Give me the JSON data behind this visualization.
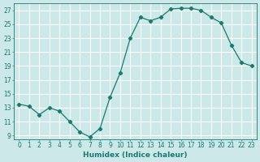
{
  "x": [
    0,
    1,
    2,
    3,
    4,
    5,
    6,
    7,
    8,
    9,
    10,
    11,
    12,
    13,
    14,
    15,
    16,
    17,
    18,
    19,
    20,
    21,
    22,
    23
  ],
  "y": [
    13.5,
    13.2,
    12.0,
    13.0,
    12.5,
    11.0,
    9.5,
    8.8,
    10.0,
    14.5,
    18.0,
    23.0,
    26.0,
    25.5,
    26.0,
    27.2,
    27.3,
    27.3,
    27.0,
    26.0,
    25.2,
    22.0,
    19.5,
    19.0
  ],
  "line_color": "#1a7a6e",
  "marker": "D",
  "marker_size": 2.2,
  "bg_color": "#cce8e8",
  "grid_color": "#ffffff",
  "xlabel": "Humidex (Indice chaleur)",
  "xlim": [
    -0.5,
    23.5
  ],
  "ylim": [
    8.5,
    28.0
  ],
  "yticks": [
    9,
    11,
    13,
    15,
    17,
    19,
    21,
    23,
    25,
    27
  ],
  "xticks": [
    0,
    1,
    2,
    3,
    4,
    5,
    6,
    7,
    8,
    9,
    10,
    11,
    12,
    13,
    14,
    15,
    16,
    17,
    18,
    19,
    20,
    21,
    22,
    23
  ],
  "tick_color": "#1a7a6e",
  "label_color": "#1a7a6e",
  "axis_fontsize": 6.5,
  "tick_fontsize": 5.5
}
